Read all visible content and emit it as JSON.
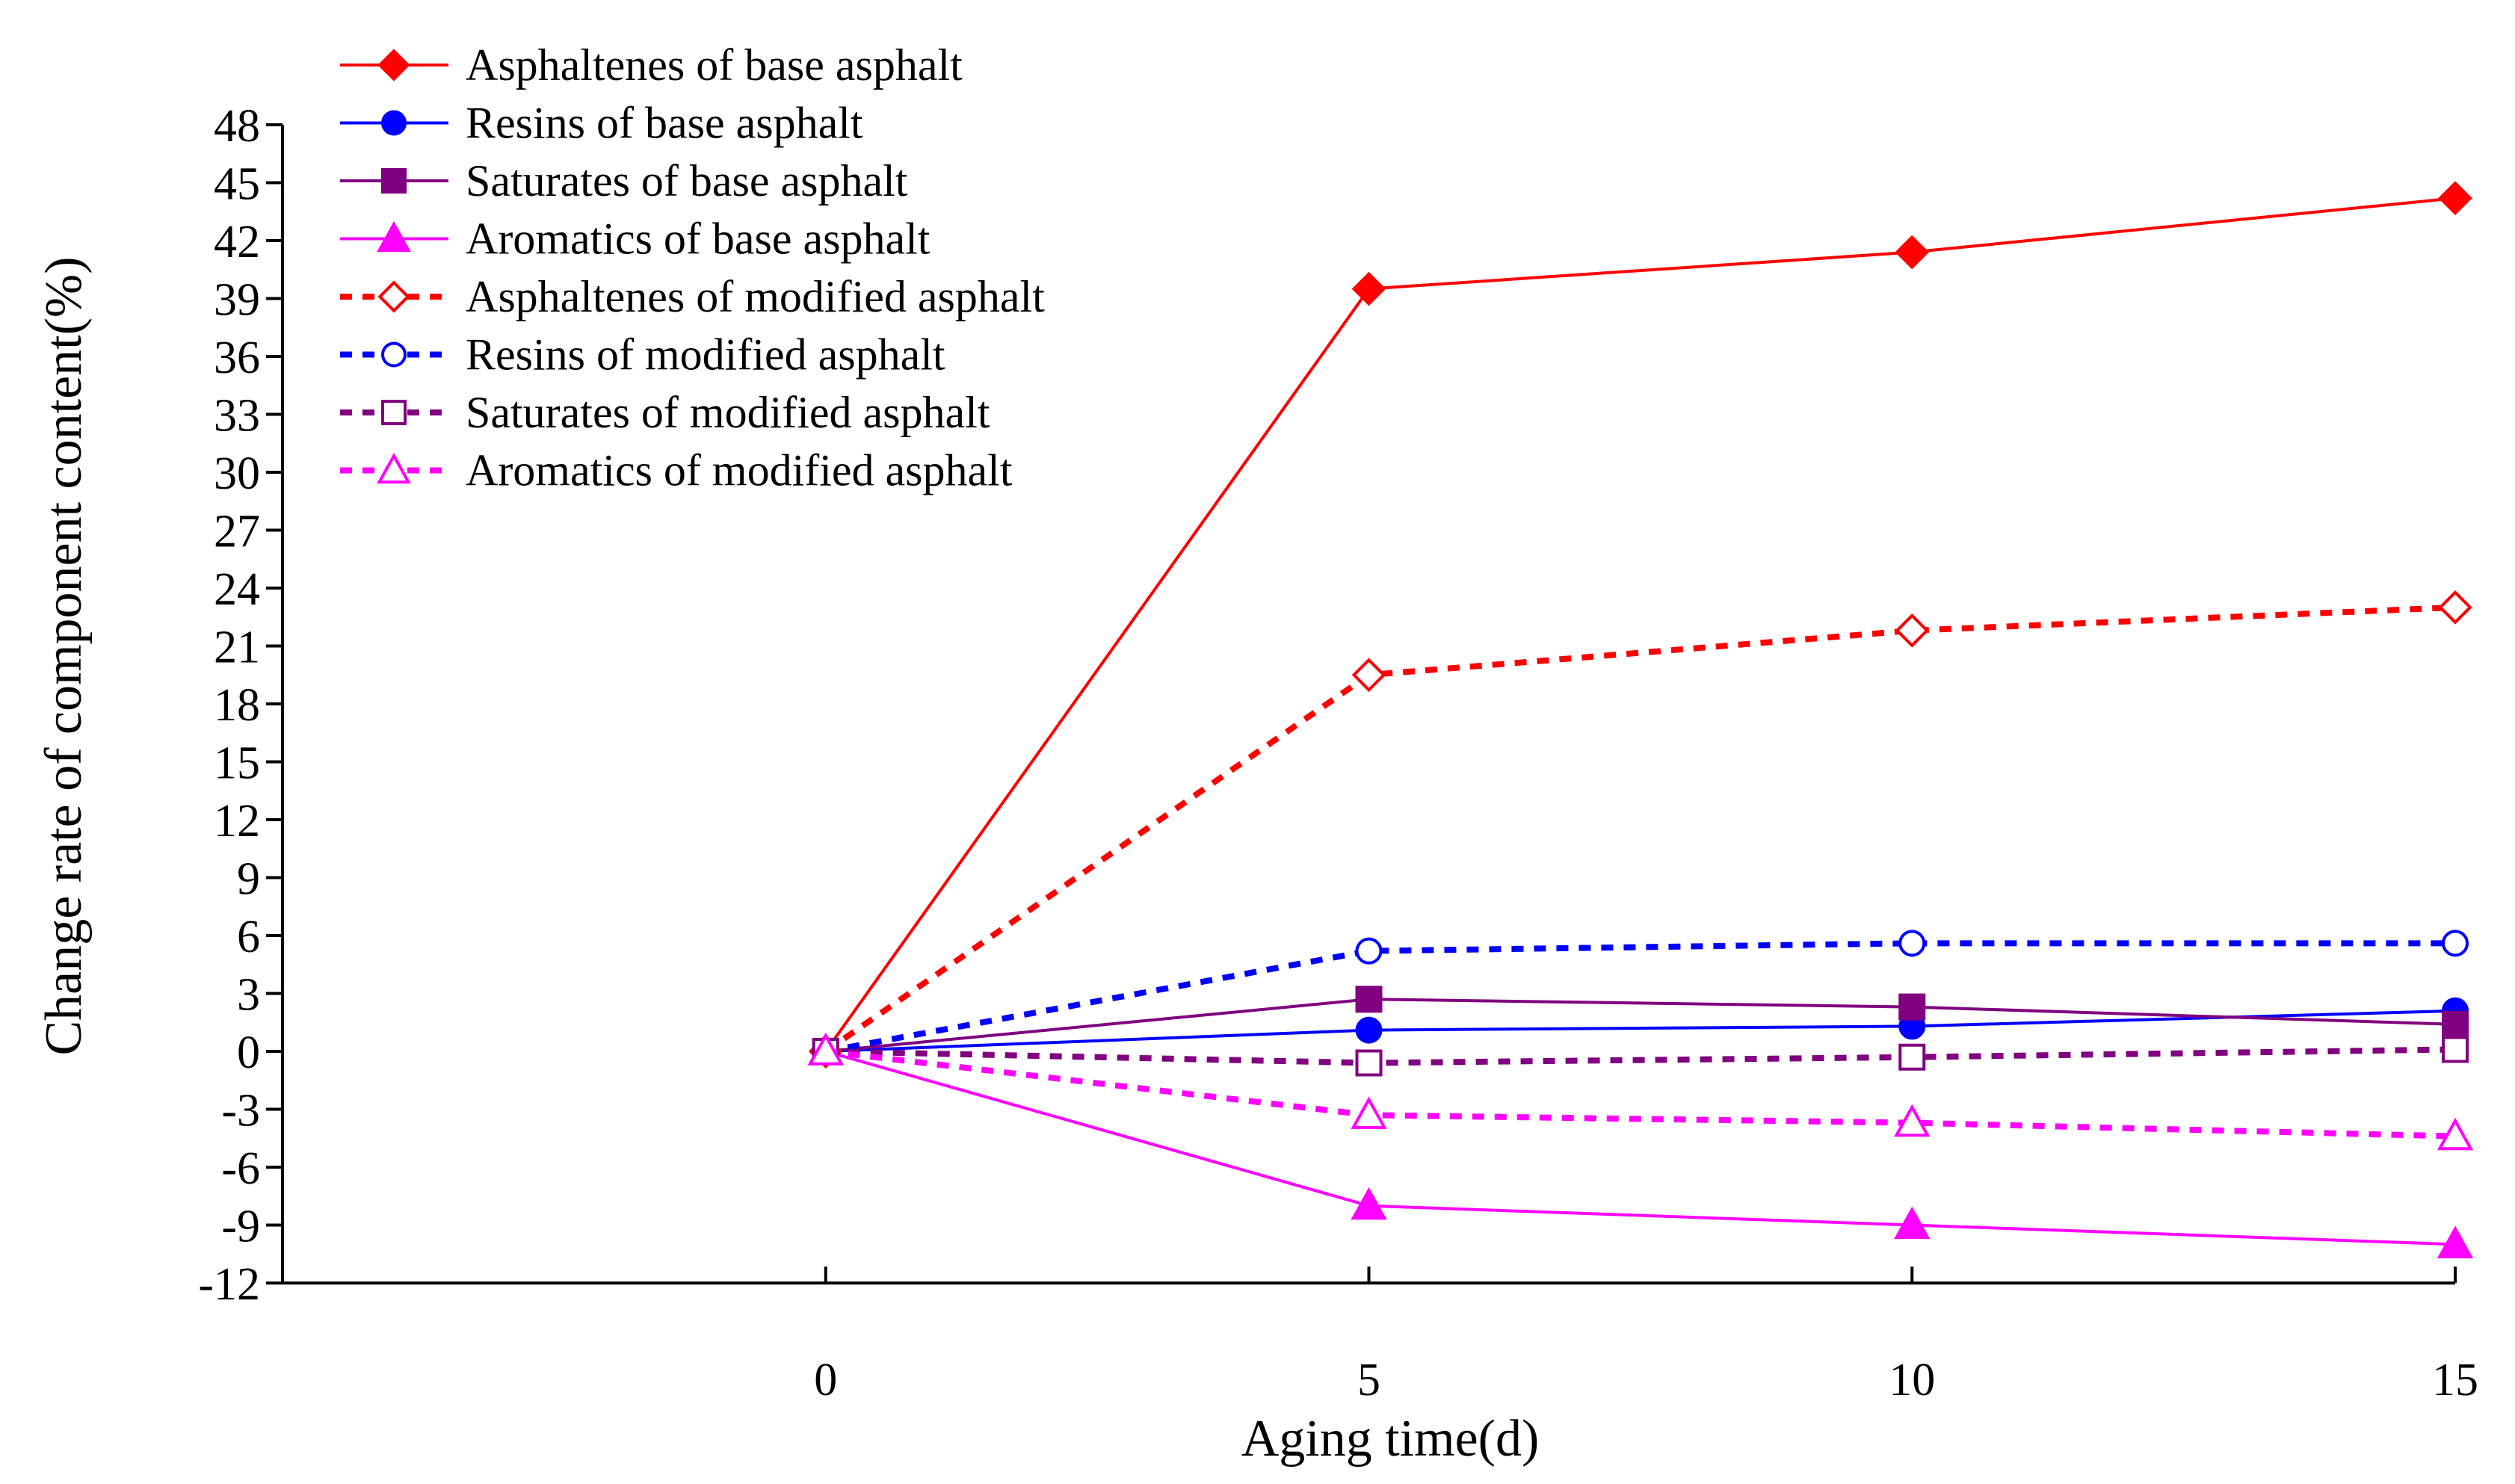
{
  "chart_data": {
    "type": "line",
    "title": "",
    "xlabel": "Aging time(d)",
    "ylabel": "Change rate of component content(%)",
    "x": [
      0,
      5,
      10,
      15
    ],
    "xlim": [
      -5,
      15
    ],
    "ylim": [
      -12,
      48
    ],
    "xticks": [
      0,
      5,
      10,
      15
    ],
    "yticks": [
      -12,
      -9,
      -6,
      -3,
      0,
      3,
      6,
      9,
      12,
      15,
      18,
      21,
      24,
      27,
      30,
      33,
      36,
      39,
      42,
      45,
      48
    ],
    "grid": false,
    "legend_position": "top-left",
    "series": [
      {
        "name": "Asphaltenes of base asphalt",
        "values": [
          0,
          39.5,
          41.4,
          44.2
        ],
        "color": "#ff0000",
        "dashed": false,
        "marker": "diamond",
        "filled": true
      },
      {
        "name": "Resins  of base asphalt",
        "values": [
          0,
          1.1,
          1.3,
          2.1
        ],
        "color": "#0000ff",
        "dashed": false,
        "marker": "circle",
        "filled": true
      },
      {
        "name": "Saturates  of base asphalt",
        "values": [
          0,
          2.7,
          2.3,
          1.4
        ],
        "color": "#800080",
        "dashed": false,
        "marker": "square",
        "filled": true
      },
      {
        "name": "Aromatics  of base asphalt",
        "values": [
          0,
          -8.0,
          -9.0,
          -10.0
        ],
        "color": "#ff00ff",
        "dashed": false,
        "marker": "triangle",
        "filled": true
      },
      {
        "name": "Asphaltenes of modified asphalt",
        "values": [
          0,
          19.5,
          21.8,
          23.0
        ],
        "color": "#ff0000",
        "dashed": true,
        "marker": "diamond",
        "filled": false
      },
      {
        "name": "Resins of modified asphalt",
        "values": [
          0,
          5.2,
          5.6,
          5.6
        ],
        "color": "#0000ff",
        "dashed": true,
        "marker": "circle",
        "filled": false
      },
      {
        "name": "Saturates of modified asphalt",
        "values": [
          0,
          -0.6,
          -0.3,
          0.1
        ],
        "color": "#800080",
        "dashed": true,
        "marker": "square",
        "filled": false
      },
      {
        "name": "Aromatics of modified asphalt",
        "values": [
          0,
          -3.3,
          -3.7,
          -4.4
        ],
        "color": "#ff00ff",
        "dashed": true,
        "marker": "triangle",
        "filled": false
      }
    ]
  }
}
